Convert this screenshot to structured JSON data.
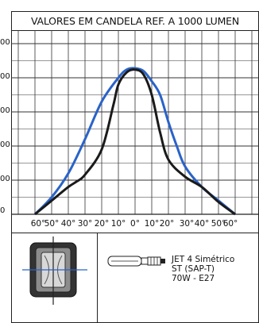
{
  "chart_data": {
    "type": "line",
    "title": "VALORES EM CANDELA REF. A 1000 LUMEN",
    "x_ticks": [
      "60°",
      "50°",
      "40°",
      "30°",
      "20°",
      "10°",
      "0°",
      "10°",
      "20°",
      "30°",
      "40°",
      "50°",
      "60°"
    ],
    "y_ticks": [
      "0",
      "00",
      "00",
      "00",
      "00",
      "00"
    ],
    "x_range_deg": [
      -60,
      60
    ],
    "grid": true,
    "series": [
      {
        "color": "#2a63c8",
        "points": [
          [
            -60,
            0
          ],
          [
            -50,
            25
          ],
          [
            -40,
            60
          ],
          [
            -30,
            110
          ],
          [
            -20,
            165
          ],
          [
            -10,
            200
          ],
          [
            -5,
            212
          ],
          [
            0,
            214
          ],
          [
            5,
            210
          ],
          [
            10,
            195
          ],
          [
            15,
            175
          ],
          [
            20,
            135
          ],
          [
            25,
            100
          ],
          [
            30,
            70
          ],
          [
            40,
            40
          ],
          [
            50,
            20
          ],
          [
            60,
            0
          ]
        ]
      },
      {
        "color": "#1a1a1a",
        "points": [
          [
            -60,
            0
          ],
          [
            -50,
            20
          ],
          [
            -40,
            40
          ],
          [
            -35,
            48
          ],
          [
            -30,
            58
          ],
          [
            -20,
            95
          ],
          [
            -13,
            160
          ],
          [
            -10,
            190
          ],
          [
            -5,
            208
          ],
          [
            0,
            212
          ],
          [
            5,
            205
          ],
          [
            10,
            175
          ],
          [
            15,
            120
          ],
          [
            20,
            80
          ],
          [
            30,
            55
          ],
          [
            40,
            40
          ],
          [
            50,
            18
          ],
          [
            60,
            0
          ]
        ]
      }
    ]
  },
  "lamp": {
    "line1": "JET 4 Simétrico",
    "line2": "ST (SAP-T)",
    "line3": "70W - E27"
  }
}
